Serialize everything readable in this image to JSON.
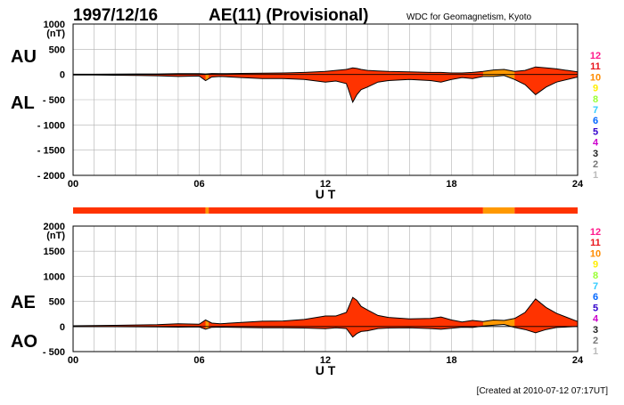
{
  "header": {
    "date": "1997/12/16",
    "title": "AE(11) (Provisional)",
    "source": "WDC for Geomagnetism, Kyoto"
  },
  "footer": {
    "created": "[Created at 2010-07-12 07:17UT]"
  },
  "colors": {
    "fill_main": "#ff3300",
    "fill_alt": "#ff9900",
    "grid": "#b0b0b0",
    "line": "#000000"
  },
  "legend": {
    "items": [
      {
        "label": "12",
        "color": "#ff1a8c"
      },
      {
        "label": "11",
        "color": "#e8141c"
      },
      {
        "label": "10",
        "color": "#ff8c00"
      },
      {
        "label": "9",
        "color": "#ffee00"
      },
      {
        "label": "8",
        "color": "#99ff33"
      },
      {
        "label": "7",
        "color": "#33ccff"
      },
      {
        "label": "6",
        "color": "#0066ff"
      },
      {
        "label": "5",
        "color": "#3300cc"
      },
      {
        "label": "4",
        "color": "#cc00cc"
      },
      {
        "label": "3",
        "color": "#222222"
      },
      {
        "label": "2",
        "color": "#777777"
      },
      {
        "label": "1",
        "color": "#bbbbbb"
      }
    ]
  },
  "chart_data": [
    {
      "type": "area",
      "panel": "upper",
      "series": [
        {
          "name": "AU",
          "x": [
            0,
            1,
            2,
            3,
            4,
            5,
            6,
            6.3,
            6.6,
            7,
            8,
            9,
            10,
            11,
            12,
            12.5,
            13,
            13.3,
            13.5,
            13.7,
            14,
            14.5,
            15,
            16,
            17,
            17.5,
            18,
            18.5,
            19,
            19.5,
            20,
            20.5,
            21,
            21.5,
            22,
            22.5,
            23,
            24
          ],
          "values": [
            5,
            5,
            8,
            10,
            10,
            15,
            15,
            10,
            18,
            15,
            20,
            25,
            30,
            40,
            60,
            80,
            100,
            130,
            120,
            100,
            80,
            70,
            60,
            50,
            40,
            40,
            30,
            30,
            40,
            60,
            90,
            100,
            60,
            80,
            150,
            130,
            110,
            50
          ]
        },
        {
          "name": "AL",
          "x": [
            0,
            1,
            2,
            3,
            4,
            5,
            6,
            6.3,
            6.6,
            7,
            8,
            9,
            10,
            11,
            12,
            12.5,
            13,
            13.3,
            13.5,
            13.7,
            14,
            14.5,
            15,
            16,
            17,
            17.5,
            18,
            18.5,
            19,
            19.5,
            20,
            20.5,
            21,
            21.5,
            22,
            22.5,
            23,
            24
          ],
          "values": [
            -10,
            -12,
            -15,
            -20,
            -25,
            -40,
            -30,
            -120,
            -50,
            -40,
            -60,
            -80,
            -80,
            -100,
            -150,
            -130,
            -180,
            -550,
            -400,
            -300,
            -250,
            -150,
            -120,
            -100,
            -120,
            -150,
            -100,
            -60,
            -80,
            -40,
            -40,
            -20,
            -100,
            -200,
            -400,
            -250,
            -150,
            -50
          ]
        }
      ],
      "ylim": [
        -2000,
        1000
      ],
      "yticks": [
        "1000",
        "500",
        "0",
        "- 500",
        "- 1000",
        "- 1500",
        "- 2000"
      ],
      "yunit": "(nT)",
      "xlim": [
        0,
        24
      ],
      "xticks": [
        "00",
        "06",
        "12",
        "18",
        "24"
      ],
      "xlabel": "U T",
      "row_labels": {
        "top": "AU",
        "bottom": "AL"
      },
      "grid": true
    },
    {
      "type": "area",
      "panel": "lower",
      "series": [
        {
          "name": "AE",
          "x": [
            0,
            1,
            2,
            3,
            4,
            5,
            6,
            6.3,
            6.6,
            7,
            8,
            9,
            10,
            11,
            12,
            12.5,
            13,
            13.3,
            13.5,
            13.7,
            14,
            14.5,
            15,
            16,
            17,
            17.5,
            18,
            18.5,
            19,
            19.5,
            20,
            20.5,
            21,
            21.5,
            22,
            22.5,
            23,
            24
          ],
          "values": [
            15,
            17,
            23,
            30,
            35,
            55,
            45,
            130,
            68,
            55,
            80,
            105,
            110,
            140,
            210,
            210,
            280,
            580,
            520,
            400,
            330,
            220,
            180,
            150,
            160,
            190,
            130,
            90,
            120,
            100,
            130,
            120,
            160,
            280,
            550,
            380,
            260,
            100
          ]
        },
        {
          "name": "AO",
          "x": [
            0,
            1,
            2,
            3,
            4,
            5,
            6,
            6.3,
            6.6,
            7,
            8,
            9,
            10,
            11,
            12,
            12.5,
            13,
            13.3,
            13.5,
            13.7,
            14,
            14.5,
            15,
            16,
            17,
            17.5,
            18,
            18.5,
            19,
            19.5,
            20,
            20.5,
            21,
            21.5,
            22,
            22.5,
            23,
            24
          ],
          "values": [
            -3,
            -3,
            -4,
            -5,
            -8,
            -12,
            -8,
            -55,
            -16,
            -12,
            -20,
            -27,
            -25,
            -30,
            -45,
            -25,
            -40,
            -210,
            -140,
            -100,
            -85,
            -40,
            -30,
            -25,
            -40,
            -55,
            -35,
            -15,
            -20,
            10,
            25,
            40,
            -20,
            -60,
            -125,
            -60,
            -20,
            0
          ]
        }
      ],
      "ylim": [
        -500,
        2000
      ],
      "yticks": [
        "2000",
        "1500",
        "1000",
        "500",
        "0",
        "- 500"
      ],
      "yunit": "(nT)",
      "xlim": [
        0,
        24
      ],
      "xticks": [
        "00",
        "06",
        "12",
        "18",
        "24"
      ],
      "xlabel": "U T",
      "row_labels": {
        "top": "AE",
        "bottom": "AO"
      },
      "grid": true
    },
    {
      "type": "bar",
      "panel": "station-count strip",
      "segments": [
        {
          "start": 0,
          "end": 6.3,
          "label": "11"
        },
        {
          "start": 6.3,
          "end": 6.45,
          "label": "10"
        },
        {
          "start": 6.45,
          "end": 19.5,
          "label": "11"
        },
        {
          "start": 19.5,
          "end": 21.0,
          "label": "10"
        },
        {
          "start": 21.0,
          "end": 24,
          "label": "11"
        }
      ]
    }
  ]
}
